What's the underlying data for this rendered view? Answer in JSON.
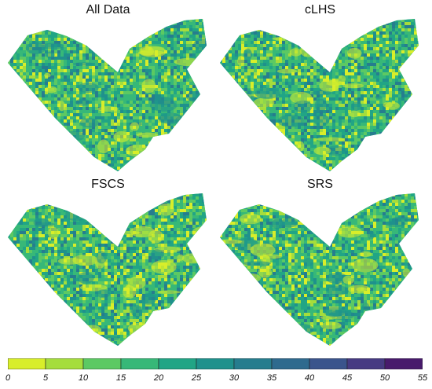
{
  "panels": [
    {
      "title": "All Data"
    },
    {
      "title": "cLHS"
    },
    {
      "title": "FSCS"
    },
    {
      "title": "SRS"
    }
  ],
  "colorbar": {
    "ticks": [
      "0",
      "5",
      "10",
      "15",
      "20",
      "25",
      "30",
      "35",
      "40",
      "45",
      "50",
      "55"
    ],
    "colors": [
      "#ffff00",
      "#d8ee2a",
      "#a5dd3c",
      "#5cc963",
      "#37b878",
      "#21a585",
      "#1f918c",
      "#267d8e",
      "#2e6a8e",
      "#3a548c",
      "#463a82",
      "#481a6c",
      "#440154"
    ]
  }
}
